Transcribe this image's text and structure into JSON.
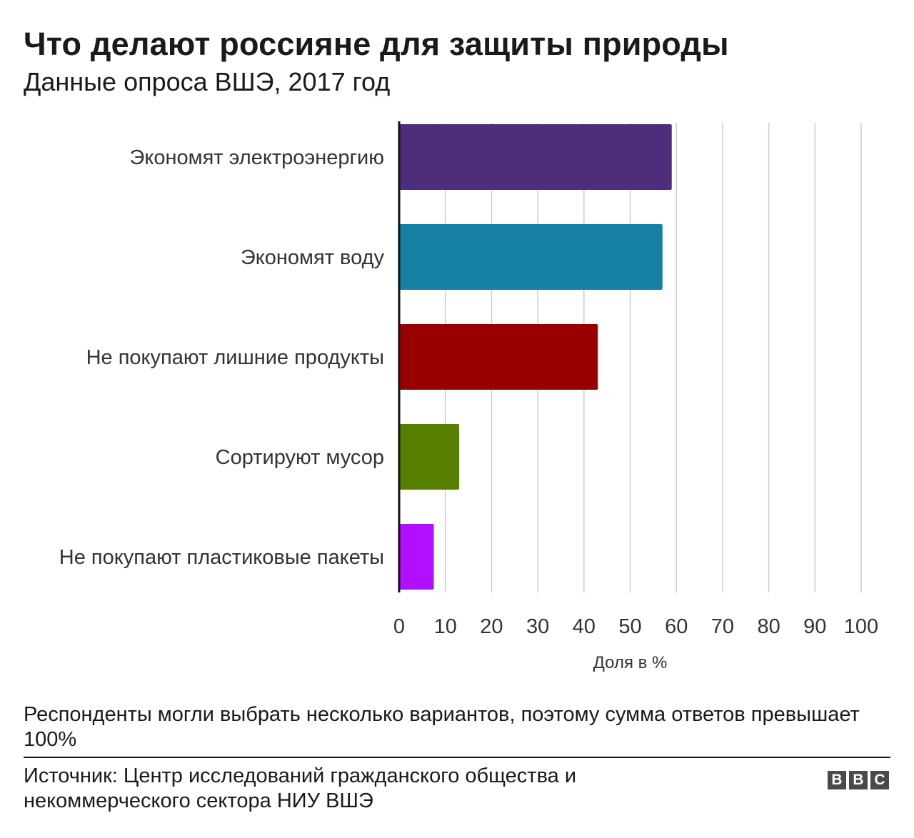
{
  "header": {
    "title": "Что делают россияне для защиты природы",
    "subtitle": "Данные опроса ВШЭ, 2017 год"
  },
  "chart_data": {
    "type": "bar",
    "orientation": "horizontal",
    "categories": [
      "Экономят электроэнергию",
      "Экономят воду",
      "Не покупают лишние продукты",
      "Сортируют мусор",
      "Не покупают пластиковые пакеты"
    ],
    "values": [
      59,
      57,
      43,
      13,
      7.5
    ],
    "colors": [
      "#4e2d7a",
      "#1680a3",
      "#990000",
      "#588000",
      "#b20eff"
    ],
    "xlabel": "Доля в %",
    "xlim": [
      0,
      100
    ],
    "xticks": [
      "0",
      "10",
      "20",
      "30",
      "40",
      "50",
      "60",
      "70",
      "80",
      "90",
      "100"
    ],
    "grid": "vertical",
    "legend": "none"
  },
  "footer": {
    "note": "Респонденты могли выбрать несколько вариантов, поэтому сумма ответов превышает 100%",
    "source": "Источник: Центр исследований гражданского общества и некоммерческого сектора НИУ ВШЭ",
    "logo_letters": [
      "B",
      "B",
      "C"
    ]
  }
}
